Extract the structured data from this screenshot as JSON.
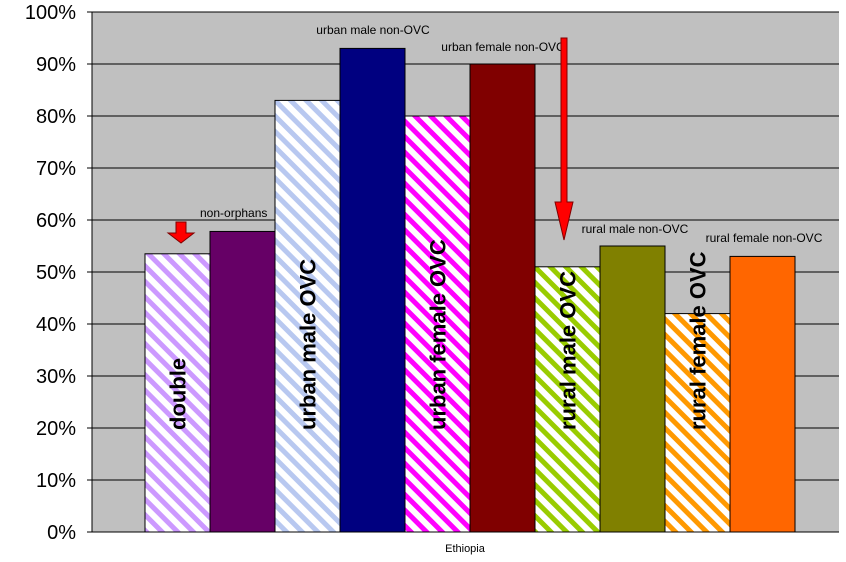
{
  "chart_data": {
    "type": "bar",
    "title": "",
    "xlabel": "",
    "ylabel": "",
    "x_category": "Ethiopia",
    "ylim": [
      0,
      100
    ],
    "y_ticks": [
      "0%",
      "10%",
      "20%",
      "30%",
      "40%",
      "50%",
      "60%",
      "70%",
      "80%",
      "90%",
      "100%"
    ],
    "grid": true,
    "legend": "none",
    "bars": [
      {
        "value": 53.5,
        "color": "#cc99ff",
        "pattern": "hatch",
        "inbar_label": "double",
        "top_label": ""
      },
      {
        "value": 57.8,
        "color": "#660066",
        "pattern": "solid",
        "inbar_label": "",
        "top_label": "non-orphans"
      },
      {
        "value": 83,
        "color": "#b8c8f0",
        "pattern": "hatch",
        "inbar_label": "urban male OVC",
        "top_label": ""
      },
      {
        "value": 93,
        "color": "#000080",
        "pattern": "solid",
        "inbar_label": "",
        "top_label": "urban male non-OVC"
      },
      {
        "value": 80,
        "color": "#ff00ff",
        "pattern": "hatch",
        "inbar_label": "urban female OVC",
        "top_label": ""
      },
      {
        "value": 90,
        "color": "#800000",
        "pattern": "solid",
        "inbar_label": "",
        "top_label": "urban female non-OVC"
      },
      {
        "value": 51,
        "color": "#99cc00",
        "pattern": "hatch",
        "inbar_label": "rural male OVC",
        "top_label": ""
      },
      {
        "value": 55,
        "color": "#808000",
        "pattern": "solid",
        "inbar_label": "",
        "top_label": "rural male non-OVC"
      },
      {
        "value": 42,
        "color": "#ff9900",
        "pattern": "hatch",
        "inbar_label": "rural female OVC",
        "top_label": ""
      },
      {
        "value": 53,
        "color": "#ff6600",
        "pattern": "solid",
        "inbar_label": "",
        "top_label": "rural female non-OVC"
      }
    ],
    "plot_background": "#c0c0c0",
    "arrow_color": "#ff0000"
  }
}
